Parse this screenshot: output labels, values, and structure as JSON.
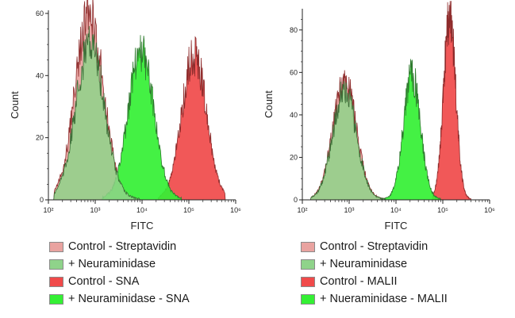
{
  "chart_data": [
    {
      "type": "area",
      "xlabel": "FITC",
      "ylabel": "Count",
      "x_scale": "log",
      "xlim": [
        100,
        1000000
      ],
      "ylim": [
        0,
        61
      ],
      "y_ticks": [
        0,
        20,
        40,
        60
      ],
      "x_tick_labels": [
        "10²",
        "10³",
        "10⁴",
        "10⁵",
        "10⁶"
      ],
      "legend": [
        "Control - Streptavidin",
        "+ Neuraminidase",
        "Control - SNA",
        "+ Neuraminidase - SNA"
      ],
      "series": [
        {
          "name": "Control - Streptavidin",
          "color": "#e9a3a0",
          "peak_x": 750,
          "peak_count": 60,
          "width_decades": 0.3,
          "floor_from": 130,
          "floor_to": 9000
        },
        {
          "name": "+ Neuraminidase",
          "color": "#8fd38a",
          "peak_x": 780,
          "peak_count": 51,
          "width_decades": 0.3,
          "floor_from": 130,
          "floor_to": 9000
        },
        {
          "name": "Control - SNA",
          "color": "#f04a4a",
          "peak_x": 130000,
          "peak_count": 47,
          "width_decades": 0.26,
          "floor_from": 22000,
          "floor_to": 600000
        },
        {
          "name": "+ Neuraminidase - SNA",
          "color": "#34f034",
          "peak_x": 9500,
          "peak_count": 48,
          "width_decades": 0.27,
          "floor_from": 1400,
          "floor_to": 70000
        }
      ]
    },
    {
      "type": "area",
      "xlabel": "FITC",
      "ylabel": "Count",
      "x_scale": "log",
      "xlim": [
        100,
        1000000
      ],
      "ylim": [
        0,
        90
      ],
      "y_ticks": [
        0,
        20,
        40,
        60,
        80
      ],
      "x_tick_labels": [
        "10²",
        "10³",
        "10⁴",
        "10⁵",
        "10⁶"
      ],
      "legend": [
        "Control - Streptavidin",
        "+ Neuraminidase",
        "Control - MALII",
        "+ Nueraminidase - MALII"
      ],
      "series": [
        {
          "name": "Control - Streptavidin",
          "color": "#e9a3a0",
          "peak_x": 800,
          "peak_count": 56,
          "width_decades": 0.25,
          "floor_from": 150,
          "floor_to": 6000
        },
        {
          "name": "+ Neuraminidase",
          "color": "#8fd38a",
          "peak_x": 800,
          "peak_count": 52,
          "width_decades": 0.25,
          "floor_from": 150,
          "floor_to": 6000
        },
        {
          "name": "Control - MALII",
          "color": "#f04a4a",
          "peak_x": 140000,
          "peak_count": 87,
          "width_decades": 0.13,
          "floor_from": 60000,
          "floor_to": 400000
        },
        {
          "name": "+ Nueraminidase - MALII",
          "color": "#34f034",
          "peak_x": 22000,
          "peak_count": 59,
          "width_decades": 0.18,
          "floor_from": 5000,
          "floor_to": 90000
        }
      ]
    }
  ]
}
